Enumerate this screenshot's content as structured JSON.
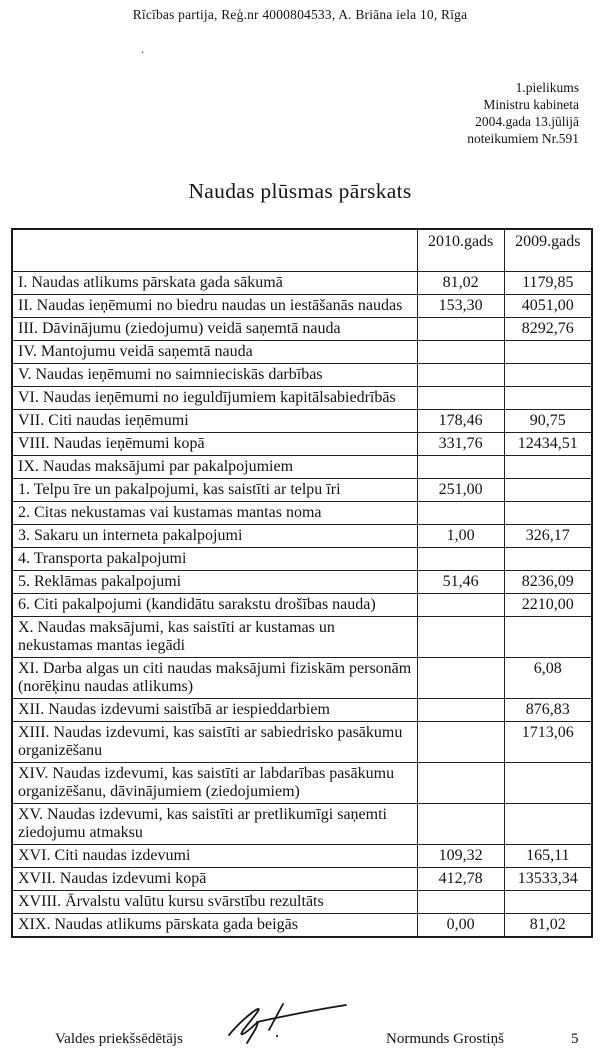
{
  "header": {
    "org_line": "Rīcības partija, Reģ.nr 4000804533, A. Briāna iela 10, Rīga",
    "stray_mark": ".",
    "annex_lines": {
      "line1": "1.pielikums",
      "line2": "Ministru kabineta",
      "line3": "2004.gada 13.jūlijā",
      "line4": "noteikumiem Nr.591"
    },
    "title": "Naudas plūsmas pārskats"
  },
  "table": {
    "columns": [
      "",
      "2010.gads",
      "2009.gads"
    ],
    "rows": [
      {
        "label": "I. Naudas atlikums pārskata gada sākumā",
        "v2010": "81,02",
        "v2009": "1179,85",
        "label_bold": false,
        "values_bold": true
      },
      {
        "label": "II. Naudas ieņēmumi no biedru naudas un iestāšanās naudas",
        "v2010": "153,30",
        "v2009": "4051,00",
        "label_bold": false,
        "values_bold": false
      },
      {
        "label": "III. Dāvinājumu (ziedojumu) veidā saņemtā nauda",
        "v2010": "",
        "v2009": "8292,76",
        "label_bold": false,
        "values_bold": false
      },
      {
        "label": "IV. Mantojumu veidā saņemtā nauda",
        "v2010": "",
        "v2009": "",
        "label_bold": false,
        "values_bold": false
      },
      {
        "label": "V. Naudas ieņēmumi no saimnieciskās darbības",
        "v2010": "",
        "v2009": "",
        "label_bold": false,
        "values_bold": false
      },
      {
        "label": "VI. Naudas ieņēmumi no ieguldījumiem kapitālsabiedrībās",
        "v2010": "",
        "v2009": "",
        "label_bold": false,
        "values_bold": false
      },
      {
        "label": "VII. Citi naudas ieņēmumi",
        "v2010": "178,46",
        "v2009": "90,75",
        "label_bold": false,
        "values_bold": false
      },
      {
        "label": "VIII. Naudas ieņēmumi kopā",
        "v2010": "331,76",
        "v2009": "12434,51",
        "label_bold": true,
        "values_bold": true
      },
      {
        "label": "IX. Naudas maksājumi par pakalpojumiem",
        "v2010": "",
        "v2009": "",
        "label_bold": false,
        "values_bold": false
      },
      {
        "label": "1. Telpu īre un pakalpojumi, kas saistīti ar telpu īri",
        "v2010": "251,00",
        "v2009": "",
        "label_bold": false,
        "values_bold": false
      },
      {
        "label": "2. Citas nekustamas vai kustamas mantas noma",
        "v2010": "",
        "v2009": "",
        "label_bold": false,
        "values_bold": false
      },
      {
        "label": "3. Sakaru un interneta pakalpojumi",
        "v2010": "1,00",
        "v2009": "326,17",
        "label_bold": false,
        "values_bold": false
      },
      {
        "label": "4. Transporta pakalpojumi",
        "v2010": "",
        "v2009": "",
        "label_bold": false,
        "values_bold": false
      },
      {
        "label": "5. Reklāmas pakalpojumi",
        "v2010": "51,46",
        "v2009": "8236,09",
        "label_bold": false,
        "values_bold": false
      },
      {
        "label": "6. Citi pakalpojumi (kandidātu sarakstu drošības nauda)",
        "v2010": "",
        "v2009": "2210,00",
        "label_bold": false,
        "values_bold": false
      },
      {
        "label": "X. Naudas maksājumi, kas saistīti ar kustamas un nekustamas mantas iegādi",
        "v2010": "",
        "v2009": "",
        "label_bold": false,
        "values_bold": false
      },
      {
        "label": "XI. Darba algas un citi naudas maksājumi fiziskām personām (norēķinu naudas atlikums)",
        "v2010": "",
        "v2009": "6,08",
        "label_bold": false,
        "values_bold": false
      },
      {
        "label": "XII. Naudas izdevumi saistībā ar iespieddarbiem",
        "v2010": "",
        "v2009": "876,83",
        "label_bold": false,
        "values_bold": false
      },
      {
        "label": "XIII. Naudas izdevumi, kas saistīti ar sabiedrisko pasākumu organizēšanu",
        "v2010": "",
        "v2009": "1713,06",
        "label_bold": false,
        "values_bold": false
      },
      {
        "label": "XIV. Naudas izdevumi, kas saistīti ar labdarības pasākumu organizēšanu, dāvinājumiem (ziedojumiem)",
        "v2010": "",
        "v2009": "",
        "label_bold": false,
        "values_bold": false
      },
      {
        "label": "XV. Naudas izdevumi, kas saistīti ar pretlikumīgi saņemti ziedojumu atmaksu",
        "v2010": "",
        "v2009": "",
        "label_bold": false,
        "values_bold": false
      },
      {
        "label": "XVI. Citi naudas izdevumi",
        "v2010": "109,32",
        "v2009": "165,11",
        "label_bold": false,
        "values_bold": false
      },
      {
        "label": "XVII. Naudas izdevumi kopā",
        "v2010": "412,78",
        "v2009": "13533,34",
        "label_bold": true,
        "values_bold": true
      },
      {
        "label": "XVIII. Ārvalstu valūtu kursu svārstību rezultāts",
        "v2010": "",
        "v2009": "",
        "label_bold": false,
        "values_bold": false
      },
      {
        "label": "XIX. Naudas atlikums pārskata gada beigās",
        "v2010": "0,00",
        "v2009": "81,02",
        "label_bold": true,
        "values_bold": true
      }
    ]
  },
  "footer": {
    "signer_title": "Valdes priekšsēdētājs",
    "signer_name": "Normunds Grostiņš",
    "page_number": "5"
  }
}
